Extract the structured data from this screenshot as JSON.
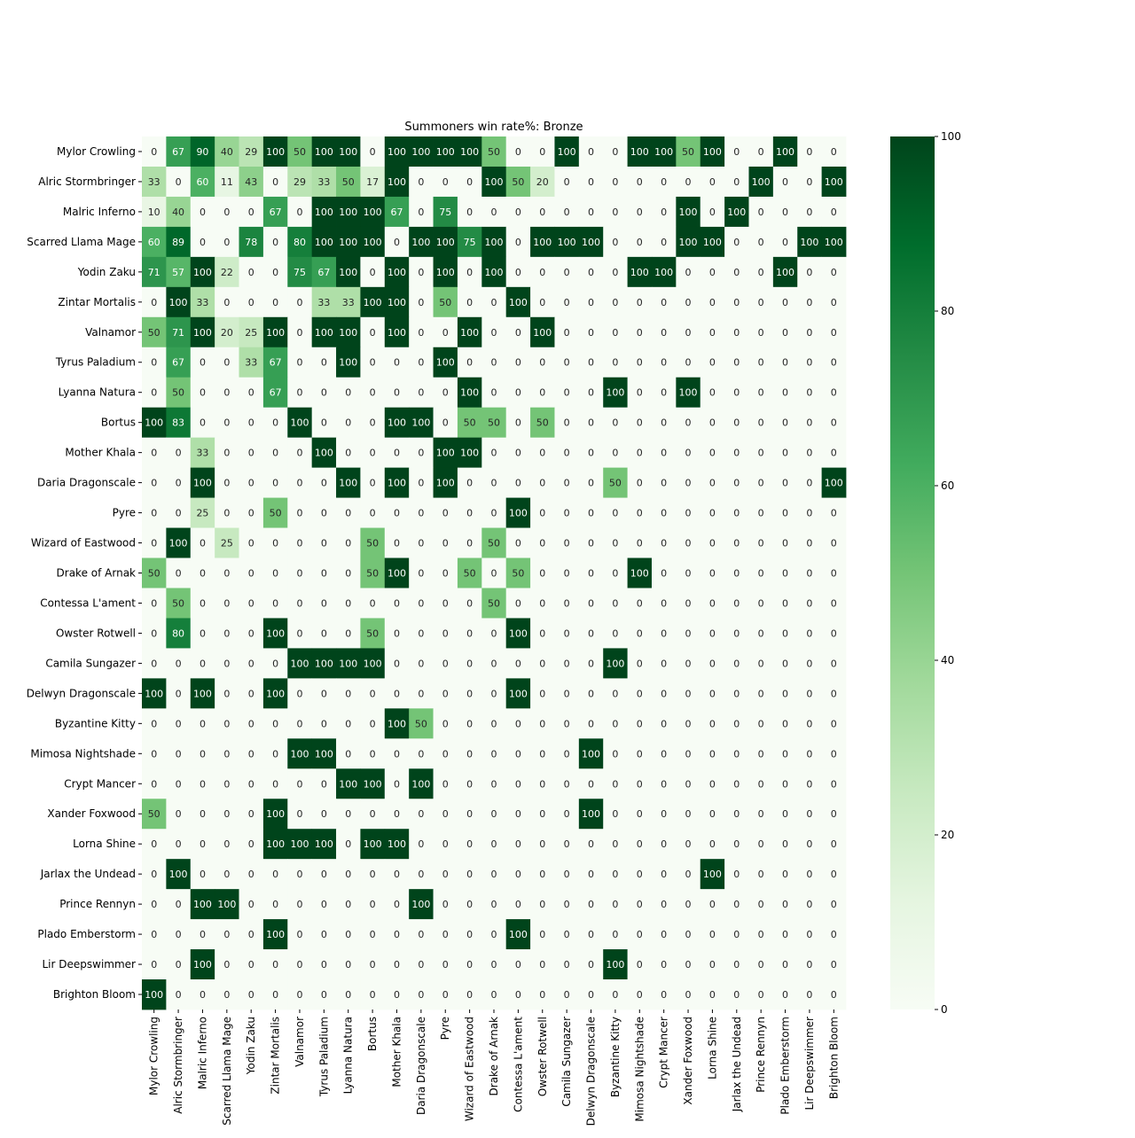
{
  "chart_data": {
    "type": "heatmap",
    "title": "Summoners win rate%: Bronze",
    "xlabel": "",
    "ylabel": "",
    "labels": [
      "Mylor Crowling",
      "Alric Stormbringer",
      "Malric Inferno",
      "Scarred Llama Mage",
      "Yodin Zaku",
      "Zintar Mortalis",
      "Valnamor",
      "Tyrus Paladium",
      "Lyanna Natura",
      "Bortus",
      "Mother Khala",
      "Daria Dragonscale",
      "Pyre",
      "Wizard of Eastwood",
      "Drake of Arnak",
      "Contessa L'ament",
      "Owster Rotwell",
      "Camila Sungazer",
      "Delwyn Dragonscale",
      "Byzantine Kitty",
      "Mimosa Nightshade",
      "Crypt Mancer",
      "Xander Foxwood",
      "Lorna Shine",
      "Jarlax the Undead",
      "Prince Rennyn",
      "Plado Emberstorm",
      "Lir Deepswimmer",
      "Brighton Bloom"
    ],
    "values": [
      [
        0,
        67,
        90,
        40,
        29,
        100,
        50,
        100,
        100,
        0,
        100,
        100,
        100,
        100,
        50,
        0,
        0,
        100,
        0,
        0,
        100,
        100,
        50,
        100,
        0,
        0,
        100,
        0,
        0
      ],
      [
        33,
        0,
        60,
        11,
        43,
        0,
        29,
        33,
        50,
        17,
        100,
        0,
        0,
        0,
        100,
        50,
        20,
        0,
        0,
        0,
        0,
        0,
        0,
        0,
        0,
        100,
        0,
        0,
        100
      ],
      [
        10,
        40,
        0,
        0,
        0,
        67,
        0,
        100,
        100,
        100,
        67,
        0,
        75,
        0,
        0,
        0,
        0,
        0,
        0,
        0,
        0,
        0,
        100,
        0,
        100,
        0,
        0,
        0,
        0
      ],
      [
        60,
        89,
        0,
        0,
        78,
        0,
        80,
        100,
        100,
        100,
        0,
        100,
        100,
        75,
        100,
        0,
        100,
        100,
        100,
        0,
        0,
        0,
        100,
        100,
        0,
        0,
        0,
        100,
        100
      ],
      [
        71,
        57,
        100,
        22,
        0,
        0,
        75,
        67,
        100,
        0,
        100,
        0,
        100,
        0,
        100,
        0,
        0,
        0,
        0,
        0,
        100,
        100,
        0,
        0,
        0,
        0,
        100,
        0,
        0
      ],
      [
        0,
        100,
        33,
        0,
        0,
        0,
        0,
        33,
        33,
        100,
        100,
        0,
        50,
        0,
        0,
        100,
        0,
        0,
        0,
        0,
        0,
        0,
        0,
        0,
        0,
        0,
        0,
        0,
        0
      ],
      [
        50,
        71,
        100,
        20,
        25,
        100,
        0,
        100,
        100,
        0,
        100,
        0,
        0,
        100,
        0,
        0,
        100,
        0,
        0,
        0,
        0,
        0,
        0,
        0,
        0,
        0,
        0,
        0,
        0
      ],
      [
        0,
        67,
        0,
        0,
        33,
        67,
        0,
        0,
        100,
        0,
        0,
        0,
        100,
        0,
        0,
        0,
        0,
        0,
        0,
        0,
        0,
        0,
        0,
        0,
        0,
        0,
        0,
        0,
        0
      ],
      [
        0,
        50,
        0,
        0,
        0,
        67,
        0,
        0,
        0,
        0,
        0,
        0,
        0,
        100,
        0,
        0,
        0,
        0,
        0,
        100,
        0,
        0,
        100,
        0,
        0,
        0,
        0,
        0,
        0
      ],
      [
        100,
        83,
        0,
        0,
        0,
        0,
        100,
        0,
        0,
        0,
        100,
        100,
        0,
        50,
        50,
        0,
        50,
        0,
        0,
        0,
        0,
        0,
        0,
        0,
        0,
        0,
        0,
        0,
        0
      ],
      [
        0,
        0,
        33,
        0,
        0,
        0,
        0,
        100,
        0,
        0,
        0,
        0,
        100,
        100,
        0,
        0,
        0,
        0,
        0,
        0,
        0,
        0,
        0,
        0,
        0,
        0,
        0,
        0,
        0
      ],
      [
        0,
        0,
        100,
        0,
        0,
        0,
        0,
        0,
        100,
        0,
        100,
        0,
        100,
        0,
        0,
        0,
        0,
        0,
        0,
        50,
        0,
        0,
        0,
        0,
        0,
        0,
        0,
        0,
        100
      ],
      [
        0,
        0,
        25,
        0,
        0,
        50,
        0,
        0,
        0,
        0,
        0,
        0,
        0,
        0,
        0,
        100,
        0,
        0,
        0,
        0,
        0,
        0,
        0,
        0,
        0,
        0,
        0,
        0,
        0
      ],
      [
        0,
        100,
        0,
        25,
        0,
        0,
        0,
        0,
        0,
        50,
        0,
        0,
        0,
        0,
        50,
        0,
        0,
        0,
        0,
        0,
        0,
        0,
        0,
        0,
        0,
        0,
        0,
        0,
        0
      ],
      [
        50,
        0,
        0,
        0,
        0,
        0,
        0,
        0,
        0,
        50,
        100,
        0,
        0,
        50,
        0,
        50,
        0,
        0,
        0,
        0,
        100,
        0,
        0,
        0,
        0,
        0,
        0,
        0,
        0
      ],
      [
        0,
        50,
        0,
        0,
        0,
        0,
        0,
        0,
        0,
        0,
        0,
        0,
        0,
        0,
        50,
        0,
        0,
        0,
        0,
        0,
        0,
        0,
        0,
        0,
        0,
        0,
        0,
        0,
        0
      ],
      [
        0,
        80,
        0,
        0,
        0,
        100,
        0,
        0,
        0,
        50,
        0,
        0,
        0,
        0,
        0,
        100,
        0,
        0,
        0,
        0,
        0,
        0,
        0,
        0,
        0,
        0,
        0,
        0,
        0
      ],
      [
        0,
        0,
        0,
        0,
        0,
        0,
        100,
        100,
        100,
        100,
        0,
        0,
        0,
        0,
        0,
        0,
        0,
        0,
        0,
        100,
        0,
        0,
        0,
        0,
        0,
        0,
        0,
        0,
        0
      ],
      [
        100,
        0,
        100,
        0,
        0,
        100,
        0,
        0,
        0,
        0,
        0,
        0,
        0,
        0,
        0,
        100,
        0,
        0,
        0,
        0,
        0,
        0,
        0,
        0,
        0,
        0,
        0,
        0,
        0
      ],
      [
        0,
        0,
        0,
        0,
        0,
        0,
        0,
        0,
        0,
        0,
        100,
        50,
        0,
        0,
        0,
        0,
        0,
        0,
        0,
        0,
        0,
        0,
        0,
        0,
        0,
        0,
        0,
        0,
        0
      ],
      [
        0,
        0,
        0,
        0,
        0,
        0,
        100,
        100,
        0,
        0,
        0,
        0,
        0,
        0,
        0,
        0,
        0,
        0,
        100,
        0,
        0,
        0,
        0,
        0,
        0,
        0,
        0,
        0,
        0
      ],
      [
        0,
        0,
        0,
        0,
        0,
        0,
        0,
        0,
        100,
        100,
        0,
        100,
        0,
        0,
        0,
        0,
        0,
        0,
        0,
        0,
        0,
        0,
        0,
        0,
        0,
        0,
        0,
        0,
        0
      ],
      [
        50,
        0,
        0,
        0,
        0,
        100,
        0,
        0,
        0,
        0,
        0,
        0,
        0,
        0,
        0,
        0,
        0,
        0,
        100,
        0,
        0,
        0,
        0,
        0,
        0,
        0,
        0,
        0,
        0
      ],
      [
        0,
        0,
        0,
        0,
        0,
        100,
        100,
        100,
        0,
        100,
        100,
        0,
        0,
        0,
        0,
        0,
        0,
        0,
        0,
        0,
        0,
        0,
        0,
        0,
        0,
        0,
        0,
        0,
        0
      ],
      [
        0,
        100,
        0,
        0,
        0,
        0,
        0,
        0,
        0,
        0,
        0,
        0,
        0,
        0,
        0,
        0,
        0,
        0,
        0,
        0,
        0,
        0,
        0,
        100,
        0,
        0,
        0,
        0,
        0
      ],
      [
        0,
        0,
        100,
        100,
        0,
        0,
        0,
        0,
        0,
        0,
        0,
        100,
        0,
        0,
        0,
        0,
        0,
        0,
        0,
        0,
        0,
        0,
        0,
        0,
        0,
        0,
        0,
        0,
        0
      ],
      [
        0,
        0,
        0,
        0,
        0,
        100,
        0,
        0,
        0,
        0,
        0,
        0,
        0,
        0,
        0,
        100,
        0,
        0,
        0,
        0,
        0,
        0,
        0,
        0,
        0,
        0,
        0,
        0,
        0
      ],
      [
        0,
        0,
        100,
        0,
        0,
        0,
        0,
        0,
        0,
        0,
        0,
        0,
        0,
        0,
        0,
        0,
        0,
        0,
        0,
        100,
        0,
        0,
        0,
        0,
        0,
        0,
        0,
        0,
        0
      ],
      [
        100,
        0,
        0,
        0,
        0,
        0,
        0,
        0,
        0,
        0,
        0,
        0,
        0,
        0,
        0,
        0,
        0,
        0,
        0,
        0,
        0,
        0,
        0,
        0,
        0,
        0,
        0,
        0,
        0
      ]
    ],
    "vmin": 0,
    "vmax": 100,
    "colormap": "Greens",
    "colorbar_ticks": [
      0,
      20,
      40,
      60,
      80,
      100
    ],
    "colors": {
      "low": "#f7fcf5",
      "high": "#00441b",
      "text_dark": "#262626",
      "text_light": "#ffffff"
    }
  }
}
